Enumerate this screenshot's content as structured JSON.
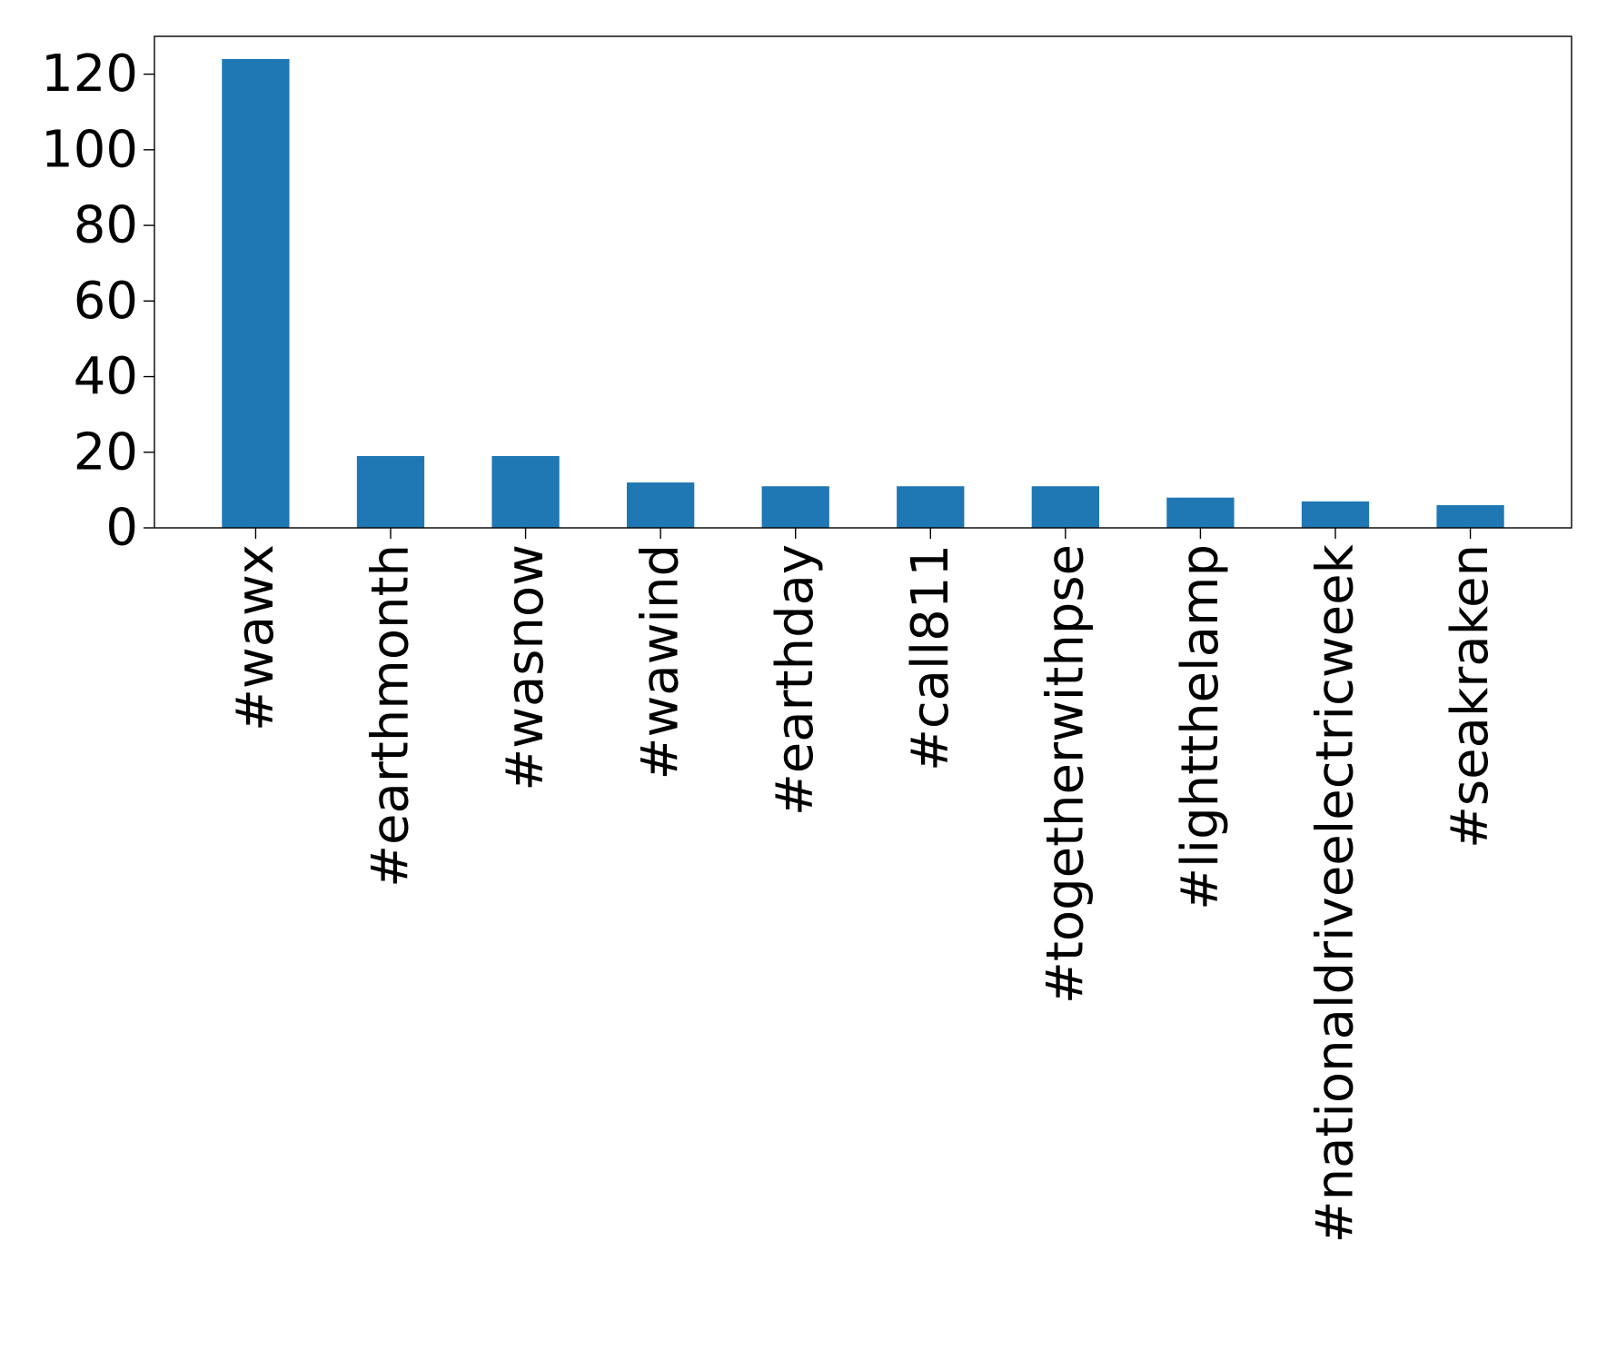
{
  "chart_data": {
    "type": "bar",
    "title": "",
    "xlabel": "",
    "ylabel": "",
    "categories": [
      "#wawx",
      "#earthmonth",
      "#wasnow",
      "#wawind",
      "#earthday",
      "#call811",
      "#togetherwithpse",
      "#lightthelamp",
      "#nationaldriveelectricweek",
      "#seakraken"
    ],
    "values": [
      124,
      19,
      19,
      12,
      11,
      11,
      11,
      8,
      7,
      6
    ],
    "ylim": [
      0,
      130
    ],
    "yticks": [
      0,
      20,
      40,
      60,
      80,
      100,
      120
    ],
    "grid": false,
    "legend": "none",
    "bar_color": "#1f77b4"
  }
}
